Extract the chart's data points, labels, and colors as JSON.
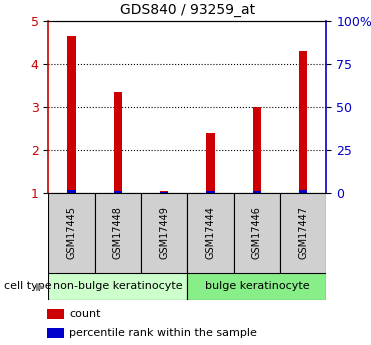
{
  "title": "GDS840 / 93259_at",
  "samples": [
    "GSM17445",
    "GSM17448",
    "GSM17449",
    "GSM17444",
    "GSM17446",
    "GSM17447"
  ],
  "red_values": [
    4.65,
    3.35,
    1.05,
    2.4,
    3.0,
    4.3
  ],
  "blue_values": [
    0.08,
    0.05,
    0.03,
    0.04,
    0.06,
    0.08
  ],
  "ylim_left": [
    1,
    5
  ],
  "ylim_right": [
    0,
    100
  ],
  "yticks_left": [
    1,
    2,
    3,
    4,
    5
  ],
  "yticks_right": [
    0,
    25,
    50,
    75,
    100
  ],
  "ytick_labels_right": [
    "0",
    "25",
    "50",
    "75",
    "100%"
  ],
  "groups": [
    {
      "label": "non-bulge keratinocyte",
      "indices": [
        0,
        1,
        2
      ],
      "color": "#ccffcc"
    },
    {
      "label": "bulge keratinocyte",
      "indices": [
        3,
        4,
        5
      ],
      "color": "#88ee88"
    }
  ],
  "cell_type_label": "cell type",
  "legend_items": [
    {
      "label": "count",
      "color": "#cc0000"
    },
    {
      "label": "percentile rank within the sample",
      "color": "#0000cc"
    }
  ],
  "red_color": "#cc0000",
  "blue_color": "#0000cc",
  "left_axis_color": "#cc0000",
  "right_axis_color": "#0000cc",
  "bg_color": "#ffffff",
  "bar_bg_color": "#d0d0d0",
  "figure_width": 3.71,
  "figure_height": 3.45,
  "dpi": 100
}
